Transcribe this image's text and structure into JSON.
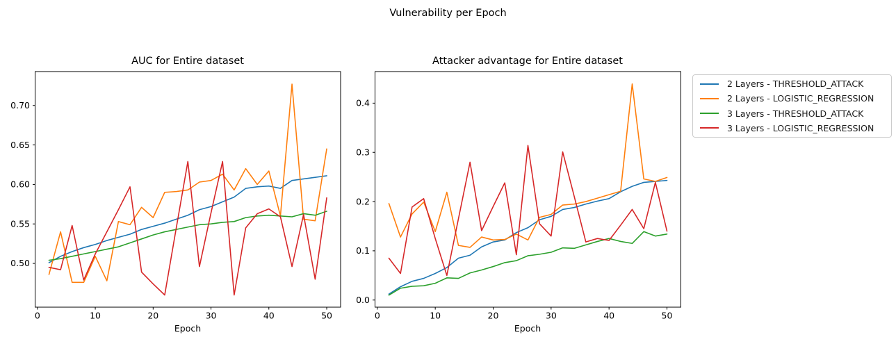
{
  "figure": {
    "suptitle": "Vulnerability per Epoch",
    "background": "#ffffff"
  },
  "legend": {
    "items": [
      {
        "label": "2 Layers - THRESHOLD_ATTACK",
        "color": "#1f77b4"
      },
      {
        "label": "2 Layers - LOGISTIC_REGRESSION",
        "color": "#ff7f0e"
      },
      {
        "label": "3 Layers - THRESHOLD_ATTACK",
        "color": "#2ca02c"
      },
      {
        "label": "3 Layers - LOGISTIC_REGRESSION",
        "color": "#d62728"
      }
    ]
  },
  "chart_data": [
    {
      "type": "line",
      "title": "AUC for Entire dataset",
      "xlabel": "Epoch",
      "ylabel": "",
      "grid": false,
      "legend_position": "outside-right-of-second-subplot",
      "x": [
        2,
        4,
        6,
        8,
        10,
        12,
        14,
        16,
        18,
        20,
        22,
        24,
        26,
        28,
        30,
        32,
        34,
        36,
        38,
        40,
        42,
        44,
        46,
        48,
        50
      ],
      "xlim": [
        -0.4,
        52.4
      ],
      "ylim": [
        0.4446,
        0.7429
      ],
      "xtick_values": [
        0,
        10,
        20,
        30,
        40,
        50
      ],
      "xtick_labels": [
        "0",
        "10",
        "20",
        "30",
        "40",
        "50"
      ],
      "ytick_values": [
        0.5,
        0.55,
        0.6,
        0.65,
        0.7
      ],
      "ytick_labels": [
        "0.50",
        "0.55",
        "0.60",
        "0.65",
        "0.70"
      ],
      "series": [
        {
          "name": "2 Layers - THRESHOLD_ATTACK",
          "color": "#1f77b4",
          "values": [
            0.501,
            0.509,
            0.515,
            0.52,
            0.524,
            0.529,
            0.533,
            0.537,
            0.543,
            0.547,
            0.551,
            0.556,
            0.561,
            0.568,
            0.572,
            0.578,
            0.584,
            0.595,
            0.597,
            0.598,
            0.595,
            0.605,
            0.607,
            0.609,
            0.611
          ]
        },
        {
          "name": "2 Layers - LOGISTIC_REGRESSION",
          "color": "#ff7f0e",
          "values": [
            0.486,
            0.54,
            0.476,
            0.476,
            0.509,
            0.478,
            0.553,
            0.549,
            0.571,
            0.558,
            0.59,
            0.591,
            0.593,
            0.603,
            0.605,
            0.613,
            0.593,
            0.62,
            0.6,
            0.617,
            0.56,
            0.727,
            0.556,
            0.554,
            0.645
          ]
        },
        {
          "name": "3 Layers - THRESHOLD_ATTACK",
          "color": "#2ca02c",
          "values": [
            0.504,
            0.506,
            0.509,
            0.512,
            0.515,
            0.518,
            0.521,
            0.526,
            0.531,
            0.536,
            0.54,
            0.543,
            0.546,
            0.549,
            0.55,
            0.552,
            0.553,
            0.558,
            0.56,
            0.561,
            0.56,
            0.559,
            0.563,
            0.561,
            0.566
          ]
        },
        {
          "name": "3 Layers - LOGISTIC_REGRESSION",
          "color": "#d62728",
          "values": [
            0.495,
            0.492,
            0.548,
            0.479,
            0.512,
            0.54,
            0.568,
            0.597,
            0.489,
            0.474,
            0.46,
            0.545,
            0.629,
            0.496,
            0.564,
            0.629,
            0.46,
            0.545,
            0.563,
            0.569,
            0.559,
            0.496,
            0.562,
            0.48,
            0.583
          ]
        }
      ]
    },
    {
      "type": "line",
      "title": "Attacker advantage for Entire dataset",
      "xlabel": "Epoch",
      "ylabel": "",
      "grid": false,
      "x": [
        2,
        4,
        6,
        8,
        10,
        12,
        14,
        16,
        18,
        20,
        22,
        24,
        26,
        28,
        30,
        32,
        34,
        36,
        38,
        40,
        42,
        44,
        46,
        48,
        50
      ],
      "xlim": [
        -0.4,
        52.4
      ],
      "ylim": [
        -0.0145,
        0.4641
      ],
      "xtick_values": [
        0,
        10,
        20,
        30,
        40,
        50
      ],
      "xtick_labels": [
        "0",
        "10",
        "20",
        "30",
        "40",
        "50"
      ],
      "ytick_values": [
        0.0,
        0.1,
        0.2,
        0.3,
        0.4
      ],
      "ytick_labels": [
        "0.0",
        "0.1",
        "0.2",
        "0.3",
        "0.4"
      ],
      "series": [
        {
          "name": "2 Layers - THRESHOLD_ATTACK",
          "color": "#1f77b4",
          "values": [
            0.012,
            0.027,
            0.038,
            0.044,
            0.054,
            0.066,
            0.085,
            0.091,
            0.108,
            0.118,
            0.122,
            0.137,
            0.147,
            0.163,
            0.17,
            0.184,
            0.188,
            0.195,
            0.201,
            0.206,
            0.22,
            0.231,
            0.239,
            0.241,
            0.243
          ]
        },
        {
          "name": "2 Layers - LOGISTIC_REGRESSION",
          "color": "#ff7f0e",
          "values": [
            0.196,
            0.128,
            0.175,
            0.199,
            0.139,
            0.219,
            0.111,
            0.107,
            0.128,
            0.122,
            0.123,
            0.134,
            0.122,
            0.168,
            0.174,
            0.193,
            0.195,
            0.2,
            0.207,
            0.214,
            0.221,
            0.439,
            0.246,
            0.241,
            0.249
          ]
        },
        {
          "name": "3 Layers - THRESHOLD_ATTACK",
          "color": "#2ca02c",
          "values": [
            0.01,
            0.024,
            0.028,
            0.029,
            0.034,
            0.045,
            0.044,
            0.055,
            0.061,
            0.068,
            0.076,
            0.08,
            0.09,
            0.093,
            0.097,
            0.106,
            0.105,
            0.112,
            0.119,
            0.125,
            0.119,
            0.115,
            0.139,
            0.13,
            0.134
          ]
        },
        {
          "name": "3 Layers - LOGISTIC_REGRESSION",
          "color": "#d62728",
          "values": [
            0.085,
            0.054,
            0.189,
            0.206,
            0.125,
            0.05,
            0.165,
            0.28,
            0.141,
            0.19,
            0.238,
            0.092,
            0.314,
            0.155,
            0.13,
            0.301,
            0.21,
            0.118,
            0.125,
            0.121,
            0.152,
            0.184,
            0.145,
            0.239,
            0.14
          ]
        }
      ]
    }
  ]
}
